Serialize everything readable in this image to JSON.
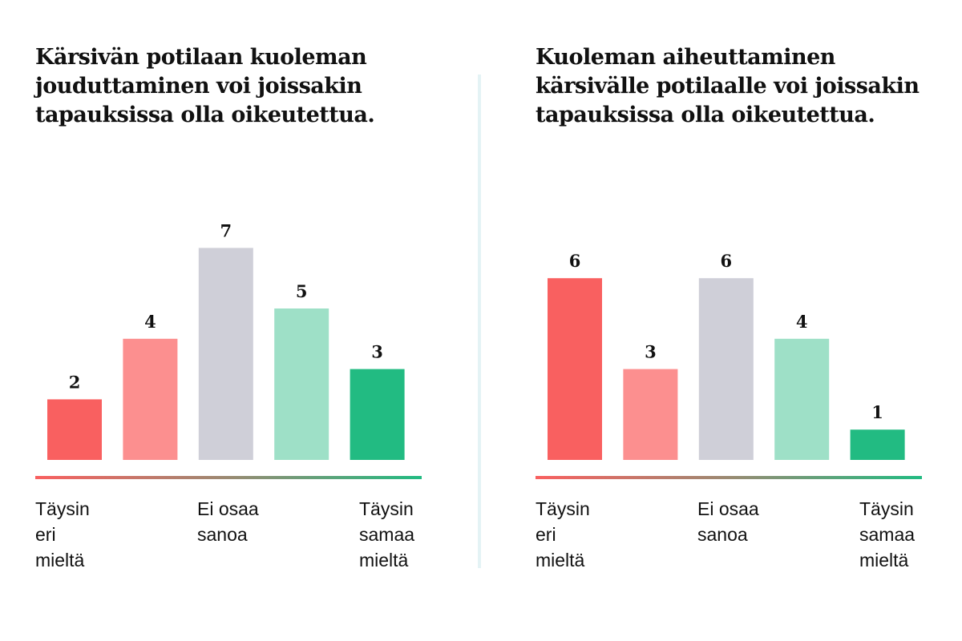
{
  "colors": {
    "strongly_disagree": "#f96060",
    "disagree": "#fc8f8f",
    "neutral": "#cfcfd8",
    "agree": "#9ee0c7",
    "strongly_agree": "#22bb82",
    "divider": "#e4f3f5"
  },
  "scale_labels": {
    "left": "Täysin\neri\nmieltä",
    "middle": "Ei osaa\nsanoa",
    "right": "Täysin\nsamaa\nmieltä"
  },
  "chart_data": [
    {
      "type": "bar",
      "title": "Kärsivän potilaan kuoleman jouduttaminen voi joissakin tapauksissa olla oikeutettua.",
      "categories": [
        "Täysin eri mieltä",
        "",
        "Ei osaa sanoa",
        "",
        "Täysin samaa mieltä"
      ],
      "values": [
        2,
        4,
        7,
        5,
        3
      ],
      "ylim": [
        0,
        7
      ],
      "grid": false,
      "data_labels": true
    },
    {
      "type": "bar",
      "title": "Kuoleman aiheuttaminen kärsivälle potilaalle voi joissakin tapauksissa olla oikeutettua.",
      "categories": [
        "Täysin eri mieltä",
        "",
        "Ei osaa sanoa",
        "",
        "Täysin samaa mieltä"
      ],
      "values": [
        6,
        3,
        6,
        4,
        1
      ],
      "ylim": [
        0,
        7
      ],
      "grid": false,
      "data_labels": true
    }
  ]
}
